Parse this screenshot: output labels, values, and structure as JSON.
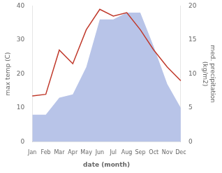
{
  "chart_data": {
    "type": "line",
    "xlabel": "date (month)",
    "ylabel": "max temp (C)",
    "y2label": "med. precipitation\n(kg/m2)",
    "categories": [
      "Jan",
      "Feb",
      "Mar",
      "Apr",
      "May",
      "Jun",
      "Jul",
      "Aug",
      "Sep",
      "Oct",
      "Nov",
      "Dec"
    ],
    "series": [
      {
        "type": "area",
        "color": "#b8c4e8",
        "values": [
          8,
          8,
          13,
          14,
          22,
          36,
          36,
          38,
          38,
          28,
          17,
          10
        ]
      },
      {
        "type": "line",
        "color": "#c0392b",
        "values": [
          13.5,
          14.0,
          27.0,
          23.0,
          33.0,
          39.0,
          37.0,
          38.0,
          33.0,
          27.0,
          22.0,
          18.0
        ]
      }
    ],
    "ylim": [
      0,
      40
    ],
    "yticks": [
      0,
      10,
      20,
      30,
      40
    ],
    "y2lim": [
      0,
      20
    ],
    "y2ticks": [
      0,
      5,
      10,
      15,
      20
    ],
    "grid": false
  }
}
